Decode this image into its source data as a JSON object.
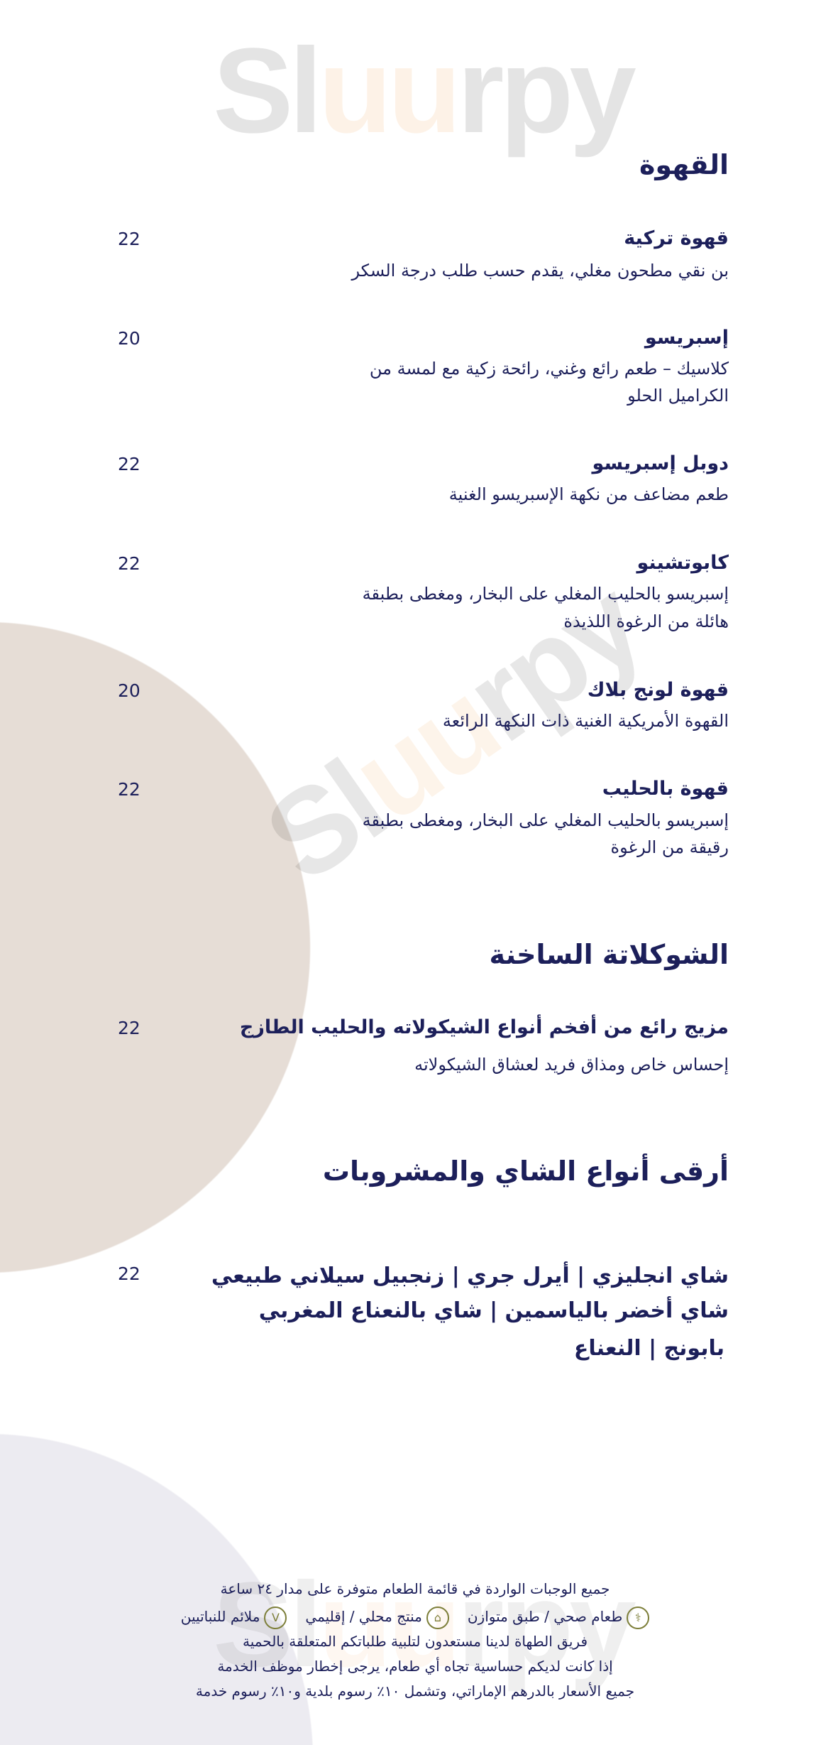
{
  "watermark": {
    "logo_text": "Sluurpy"
  },
  "colors": {
    "text": "#1c1f5a",
    "beige_circle": "#e6ddd6",
    "grey_circle": "#ecebf1",
    "icon_olive": "#7d7f3a"
  },
  "coffee": {
    "title": "القهوة",
    "items": [
      {
        "name": "قهوة تركية",
        "desc": [
          "بن نقي مطحون مغلي، يقدم حسب طلب درجة السكر"
        ],
        "price": "22"
      },
      {
        "name": "إسبريسو",
        "desc": [
          "كلاسيك – طعم رائع وغني، رائحة زكية مع لمسة من",
          "الكراميل الحلو"
        ],
        "price": "20"
      },
      {
        "name": "دوبل إسبريسو",
        "desc": [
          "طعم مضاعف من نكهة الإسبريسو الغنية"
        ],
        "price": "22"
      },
      {
        "name": "كابوتشينو",
        "desc": [
          "إسبريسو بالحليب المغلي على البخار، ومغطى بطبقة",
          "هائلة من الرغوة اللذيذة"
        ],
        "price": "22"
      },
      {
        "name": "قهوة لونج بلاك",
        "desc": [
          "القهوة الأمريكية الغنية ذات النكهة الرائعة"
        ],
        "price": "20"
      },
      {
        "name": "قهوة بالحليب",
        "desc": [
          "إسبريسو بالحليب المغلي على البخار، ومغطى بطبقة",
          "رقيقة من الرغوة"
        ],
        "price": "22"
      }
    ]
  },
  "hot_chocolate": {
    "title": "الشوكلاتة الساخنة",
    "item": {
      "name": "مزيج رائع من أفخم أنواع الشيكولاته والحليب الطازج",
      "desc": "إحساس خاص ومذاق فريد لعشاق الشيكولاته",
      "price": "22"
    }
  },
  "tea": {
    "title": "أرقى أنواع الشاي والمشروبات",
    "lines": [
      "شاي انجليزي | أيرل جري | زنجبيل سيلاني طبيعي",
      "شاي أخضر بالياسمين | شاي بالنعناع المغربي",
      "بابونج | النعناع"
    ],
    "price": "22"
  },
  "footer": {
    "availability": "جميع الوجبات الواردة في قائمة الطعام متوفرة على مدار ٢٤ ساعة",
    "legend": [
      {
        "icon": "stethoscope-icon",
        "label": "طعام صحي / طبق متوازن"
      },
      {
        "icon": "local-house-icon",
        "label": "منتج محلي / إقليمي"
      },
      {
        "icon": "vegan-v-icon",
        "glyph": "V",
        "label": "ملائم للنباتيين"
      }
    ],
    "diet_note": "فريق الطهاة لدينا مستعدون لتلبية طلباتكم المتعلقة بالحمية",
    "allergy_note": "إذا كانت لديكم حساسية تجاه أي طعام، يرجى إخطار موظف الخدمة",
    "prices_note": "جميع الأسعار بالدرهم الإماراتي، وتشمل ١٠٪ رسوم بلدية و١٠٪ رسوم خدمة"
  }
}
